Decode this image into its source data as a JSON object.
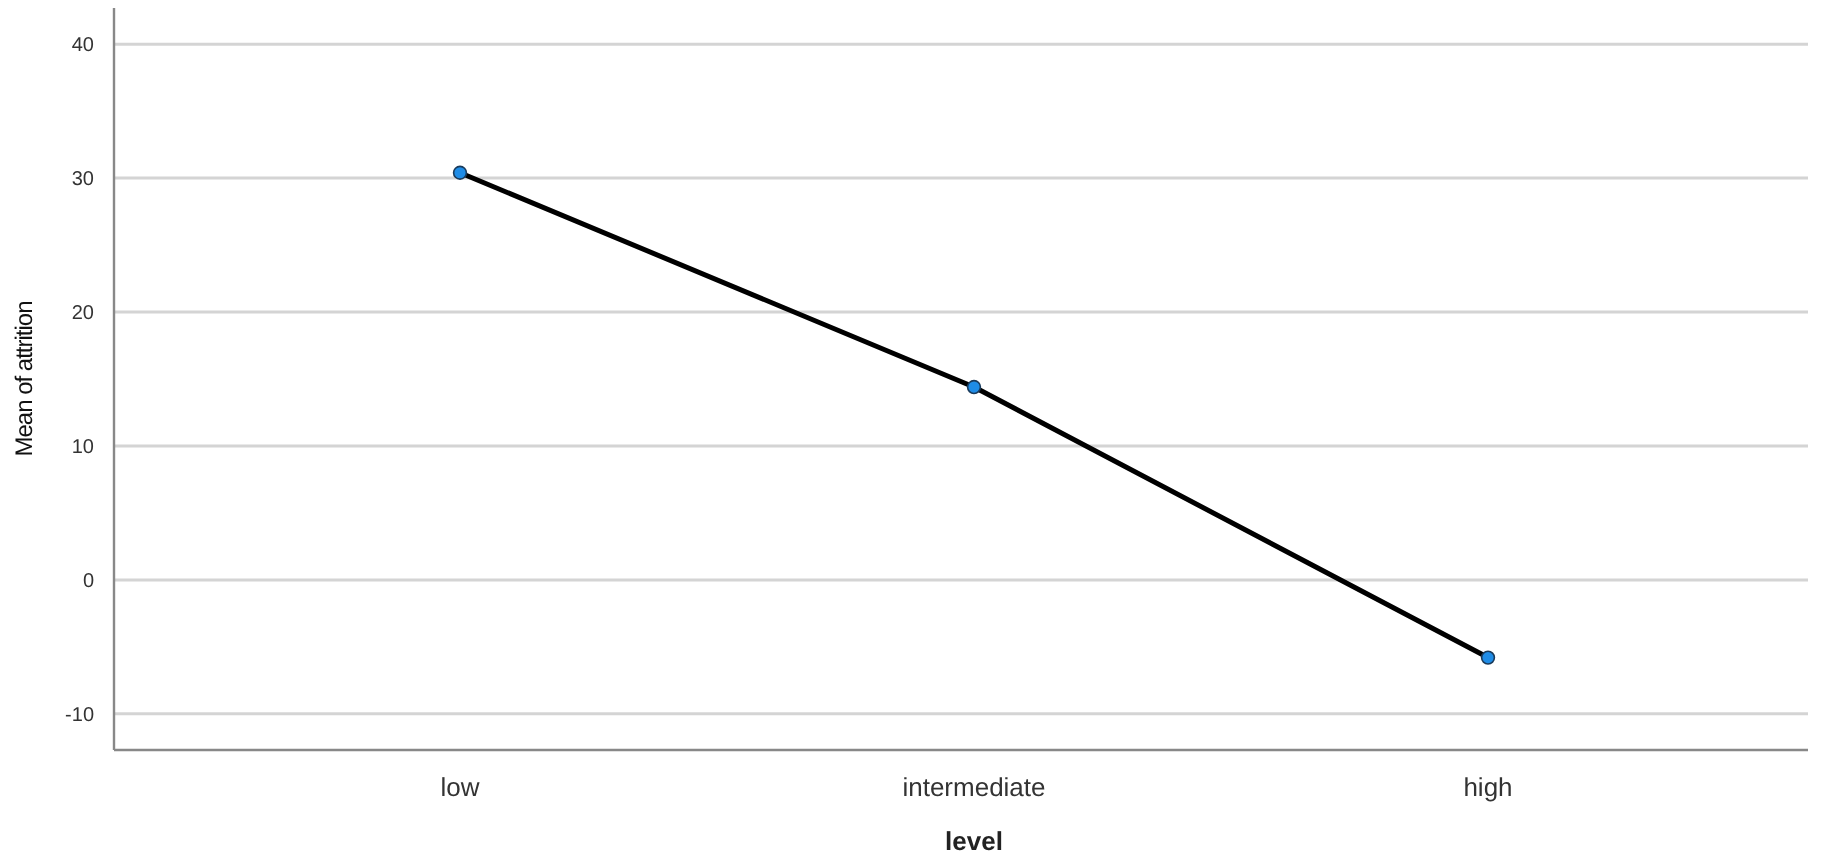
{
  "chart_data": {
    "type": "line",
    "xlabel": "level",
    "ylabel": "Mean of attrition",
    "categories": [
      "low",
      "intermediate",
      "high"
    ],
    "series": [
      {
        "color": "#000000",
        "values": [
          30.4,
          14.4,
          -5.8
        ]
      }
    ],
    "marker": "circle",
    "line_style": "solid",
    "ylim": [
      -12.7,
      42.7
    ],
    "yticks": [
      -10,
      0,
      10,
      20,
      30,
      40
    ],
    "grid": "y"
  }
}
